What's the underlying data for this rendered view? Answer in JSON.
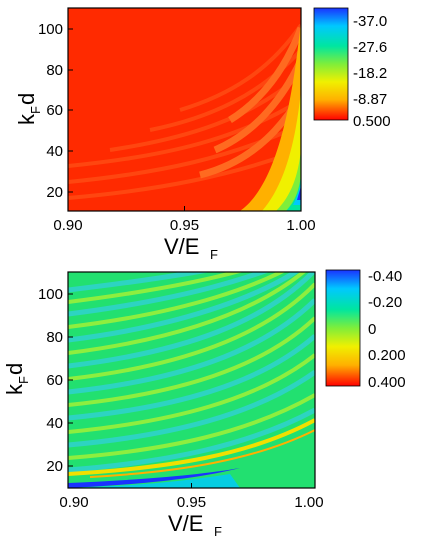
{
  "chart_data": [
    {
      "type": "heatmap",
      "title": "",
      "xlabel": "V/E",
      "xlabel_sub": "F",
      "ylabel": "k",
      "ylabel_sub": "F",
      "ylabel_suffix": "d",
      "xlim": [
        0.9,
        1.0
      ],
      "ylim": [
        10,
        110
      ],
      "xticks": [
        "0.90",
        "0.95",
        "1.00"
      ],
      "yticks": [
        "20",
        "40",
        "60",
        "80",
        "100"
      ],
      "colorbar": {
        "labels": [
          "-37.0",
          "-27.6",
          "-18.2",
          "-8.87",
          "0.500"
        ],
        "colors": [
          "#1a33ff",
          "#00c8ff",
          "#00e6a0",
          "#7fee3a",
          "#f0f000",
          "#ffb000",
          "#ff0000"
        ],
        "range": [
          -37.0,
          0.5
        ]
      },
      "features": {
        "base_color": "#ff2a00",
        "pattern": "faint orange stripes in lower-left; strong yellow/green/blue bands converging near V/E_F = 1.00",
        "min_at": [
          1.0,
          20
        ]
      }
    },
    {
      "type": "heatmap",
      "title": "",
      "xlabel": "V/E",
      "xlabel_sub": "F",
      "ylabel": "k",
      "ylabel_sub": "F",
      "ylabel_suffix": "d",
      "xlim": [
        0.9,
        1.0
      ],
      "ylim": [
        10,
        110
      ],
      "xticks": [
        "0.90",
        "0.95",
        "1.00"
      ],
      "yticks": [
        "20",
        "40",
        "60",
        "80",
        "100"
      ],
      "colorbar": {
        "labels": [
          "-0.40",
          "-0.20",
          "0",
          "0.200",
          "0.400"
        ],
        "colors": [
          "#1a33ff",
          "#00c8ff",
          "#00e6a0",
          "#7fee3a",
          "#f0f000",
          "#ffb000",
          "#ff0000"
        ],
        "range": [
          -0.4,
          0.4
        ]
      },
      "features": {
        "base_color": "#22e070",
        "pattern": "oscillating cyan/yellow stripes curving upward toward V/E_F = 1.00",
        "min_at": [
          0.92,
          11
        ]
      }
    }
  ]
}
